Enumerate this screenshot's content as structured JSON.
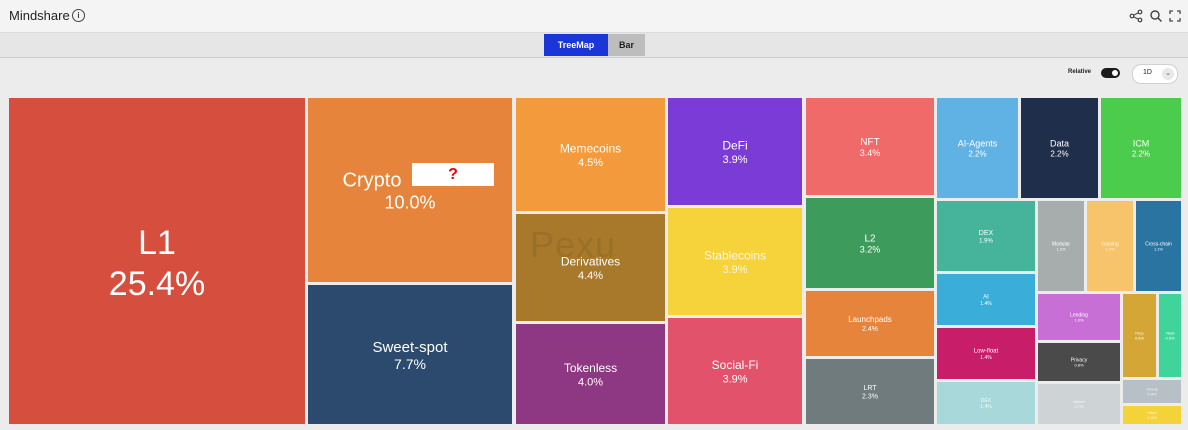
{
  "header": {
    "title": "Mindshare",
    "info_icon": "info-icon",
    "tools": [
      "share-icon",
      "search-icon",
      "fullscreen-icon"
    ]
  },
  "tabs": [
    {
      "label": "TreeMap",
      "active": true
    },
    {
      "label": "Bar",
      "active": false
    }
  ],
  "controls": {
    "relative_label": "Relative",
    "relative_on": true,
    "period_value": "1D"
  },
  "watermark": "Pexu",
  "redaction_mark": "?",
  "chart_data": {
    "type": "treemap",
    "unit": "%",
    "items": [
      {
        "label": "L1",
        "value": 25.4,
        "value_label": "25.4%",
        "color": "#d64f3e"
      },
      {
        "label": "Crypto",
        "value": 10.0,
        "value_label": "10.0%",
        "color": "#e5843a"
      },
      {
        "label": "Sweet-spot",
        "value": 7.7,
        "value_label": "7.7%",
        "color": "#2b4a6d"
      },
      {
        "label": "Memecoins",
        "value": 4.5,
        "value_label": "4.5%",
        "color": "#f39a3c"
      },
      {
        "label": "Derivatives",
        "value": 4.4,
        "value_label": "4.4%",
        "color": "#a8792a"
      },
      {
        "label": "Tokenless",
        "value": 4.0,
        "value_label": "4.0%",
        "color": "#8e3782"
      },
      {
        "label": "DeFi",
        "value": 3.9,
        "value_label": "3.9%",
        "color": "#7b3bd6"
      },
      {
        "label": "Stablecoins",
        "value": 3.9,
        "value_label": "3.9%",
        "color": "#f6d23b"
      },
      {
        "label": "Social-Fi",
        "value": 3.9,
        "value_label": "3.9%",
        "color": "#e2526a"
      },
      {
        "label": "NFT",
        "value": 3.4,
        "value_label": "3.4%",
        "color": "#ef6a68"
      },
      {
        "label": "L2",
        "value": 3.2,
        "value_label": "3.2%",
        "color": "#3d9c5b"
      },
      {
        "label": "Launchpads",
        "value": 2.4,
        "value_label": "2.4%",
        "color": "#e5843a"
      },
      {
        "label": "LRT",
        "value": 2.3,
        "value_label": "2.3%",
        "color": "#6f7b7c"
      },
      {
        "label": "AI-Agents",
        "value": 2.2,
        "value_label": "2.2%",
        "color": "#5fb2e3"
      },
      {
        "label": "Data",
        "value": 2.2,
        "value_label": "2.2%",
        "color": "#1f2e4a"
      },
      {
        "label": "ICM",
        "value": 2.2,
        "value_label": "2.2%",
        "color": "#4ccc4c"
      },
      {
        "label": "DEX",
        "value": 1.9,
        "value_label": "1.9%",
        "color": "#46b49a"
      },
      {
        "label": "AI",
        "value": 1.4,
        "value_label": "1.4%",
        "color": "#3aaed8"
      },
      {
        "label": "Low-float",
        "value": 1.4,
        "value_label": "1.4%",
        "color": "#c81e6a"
      },
      {
        "label": "DEX",
        "value": 1.4,
        "value_label": "1.4%",
        "color": "#a9d8da"
      },
      {
        "label": "Modular",
        "value": 1.2,
        "value_label": "1.2%",
        "color": "#a7adad"
      },
      {
        "label": "Gaming",
        "value": 1.2,
        "value_label": "1.2%",
        "color": "#f7c46b"
      },
      {
        "label": "Cross-chain",
        "value": 1.1,
        "value_label": "1.1%",
        "color": "#2a74a2"
      },
      {
        "label": "Lending",
        "value": 1.0,
        "value_label": "1.0%",
        "color": "#c86fd6"
      },
      {
        "label": "Privacy",
        "value": 0.8,
        "value_label": "0.8%",
        "color": "#4a4a4a"
      },
      {
        "label": "Meme",
        "value": 0.7,
        "value_label": "0.7%",
        "color": "#ced4d6"
      },
      {
        "label": "Perp",
        "value": 0.6,
        "value_label": "0.6%",
        "color": "#d4a635"
      },
      {
        "label": "Yield",
        "value": 0.6,
        "value_label": "0.6%",
        "color": "#3fd49a"
      },
      {
        "label": "Oracle",
        "value": 0.4,
        "value_label": "0.4%",
        "color": "#b7c0c6"
      },
      {
        "label": "Other",
        "value": 0.3,
        "value_label": "0.3%",
        "color": "#f3d23a"
      }
    ]
  }
}
